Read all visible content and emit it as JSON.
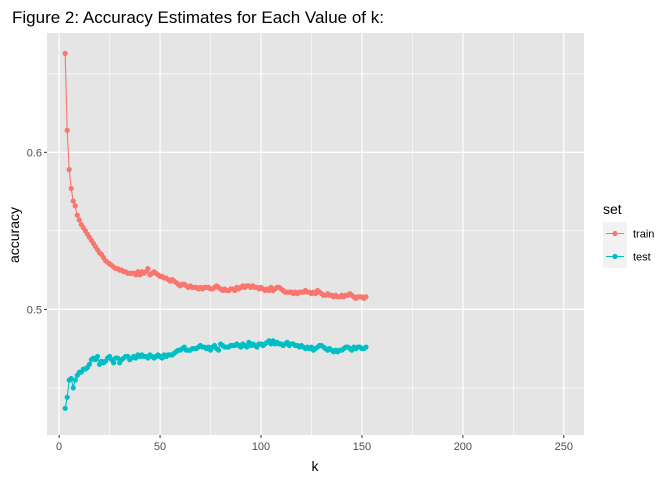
{
  "chart_data": {
    "type": "line",
    "title": "Figure 2: Accuracy Estimates for Each Value of k:",
    "xlabel": "k",
    "ylabel": "accuracy",
    "xlim": [
      -6,
      260
    ],
    "ylim": [
      0.42,
      0.676
    ],
    "x_ticks": [
      0,
      50,
      100,
      150,
      200,
      250
    ],
    "y_ticks": [
      0.5,
      0.6
    ],
    "y_tick_labels": [
      "0.5",
      "0.6"
    ],
    "grid": true,
    "legend_title": "set",
    "legend_position": "right",
    "background": "#e5e5e5",
    "gridline_color": "#ffffff",
    "series": [
      {
        "name": "train",
        "color": "#f8766d",
        "x_start": 3,
        "x_step": 1,
        "values": [
          0.663,
          0.614,
          0.589,
          0.577,
          0.569,
          0.566,
          0.56,
          0.557,
          0.554,
          0.552,
          0.55,
          0.548,
          0.546,
          0.544,
          0.542,
          0.54,
          0.538,
          0.536,
          0.535,
          0.533,
          0.531,
          0.53,
          0.529,
          0.528,
          0.527,
          0.526,
          0.526,
          0.525,
          0.525,
          0.524,
          0.524,
          0.523,
          0.523,
          0.523,
          0.523,
          0.522,
          0.524,
          0.522,
          0.524,
          0.523,
          0.524,
          0.526,
          0.522,
          0.523,
          0.524,
          0.523,
          0.522,
          0.521,
          0.521,
          0.52,
          0.52,
          0.519,
          0.518,
          0.519,
          0.518,
          0.517,
          0.516,
          0.515,
          0.516,
          0.516,
          0.515,
          0.514,
          0.515,
          0.514,
          0.514,
          0.514,
          0.513,
          0.514,
          0.513,
          0.514,
          0.514,
          0.514,
          0.513,
          0.513,
          0.514,
          0.515,
          0.514,
          0.513,
          0.512,
          0.513,
          0.512,
          0.512,
          0.513,
          0.513,
          0.512,
          0.514,
          0.513,
          0.514,
          0.515,
          0.514,
          0.515,
          0.515,
          0.514,
          0.515,
          0.514,
          0.514,
          0.513,
          0.514,
          0.513,
          0.512,
          0.513,
          0.512,
          0.514,
          0.512,
          0.513,
          0.514,
          0.514,
          0.513,
          0.512,
          0.511,
          0.511,
          0.511,
          0.511,
          0.51,
          0.511,
          0.51,
          0.511,
          0.511,
          0.511,
          0.512,
          0.511,
          0.511,
          0.51,
          0.511,
          0.51,
          0.512,
          0.511,
          0.51,
          0.509,
          0.509,
          0.51,
          0.509,
          0.509,
          0.508,
          0.509,
          0.508,
          0.508,
          0.509,
          0.508,
          0.509,
          0.509,
          0.51,
          0.509,
          0.508,
          0.507,
          0.508,
          0.508,
          0.508,
          0.507,
          0.508
        ]
      },
      {
        "name": "test",
        "color": "#00bfc4",
        "x_start": 3,
        "x_step": 1,
        "values": [
          0.437,
          0.444,
          0.455,
          0.456,
          0.45,
          0.455,
          0.458,
          0.46,
          0.46,
          0.462,
          0.462,
          0.463,
          0.465,
          0.468,
          0.469,
          0.468,
          0.47,
          0.465,
          0.467,
          0.466,
          0.467,
          0.469,
          0.47,
          0.468,
          0.466,
          0.469,
          0.469,
          0.466,
          0.468,
          0.469,
          0.47,
          0.47,
          0.468,
          0.469,
          0.47,
          0.469,
          0.471,
          0.47,
          0.471,
          0.47,
          0.47,
          0.469,
          0.471,
          0.47,
          0.469,
          0.47,
          0.471,
          0.47,
          0.469,
          0.471,
          0.47,
          0.471,
          0.471,
          0.471,
          0.472,
          0.473,
          0.474,
          0.474,
          0.475,
          0.476,
          0.474,
          0.474,
          0.474,
          0.475,
          0.475,
          0.475,
          0.476,
          0.477,
          0.476,
          0.476,
          0.475,
          0.476,
          0.474,
          0.476,
          0.477,
          0.475,
          0.474,
          0.478,
          0.477,
          0.476,
          0.476,
          0.476,
          0.477,
          0.477,
          0.477,
          0.478,
          0.477,
          0.476,
          0.478,
          0.477,
          0.476,
          0.479,
          0.477,
          0.478,
          0.477,
          0.476,
          0.478,
          0.478,
          0.477,
          0.478,
          0.479,
          0.48,
          0.478,
          0.48,
          0.478,
          0.479,
          0.478,
          0.478,
          0.477,
          0.478,
          0.479,
          0.477,
          0.478,
          0.478,
          0.477,
          0.477,
          0.476,
          0.477,
          0.476,
          0.475,
          0.476,
          0.475,
          0.476,
          0.474,
          0.475,
          0.476,
          0.477,
          0.477,
          0.476,
          0.475,
          0.474,
          0.475,
          0.474,
          0.473,
          0.474,
          0.473,
          0.474,
          0.474,
          0.475,
          0.476,
          0.476,
          0.475,
          0.474,
          0.476,
          0.475,
          0.476,
          0.476,
          0.475,
          0.475,
          0.476
        ]
      }
    ]
  }
}
